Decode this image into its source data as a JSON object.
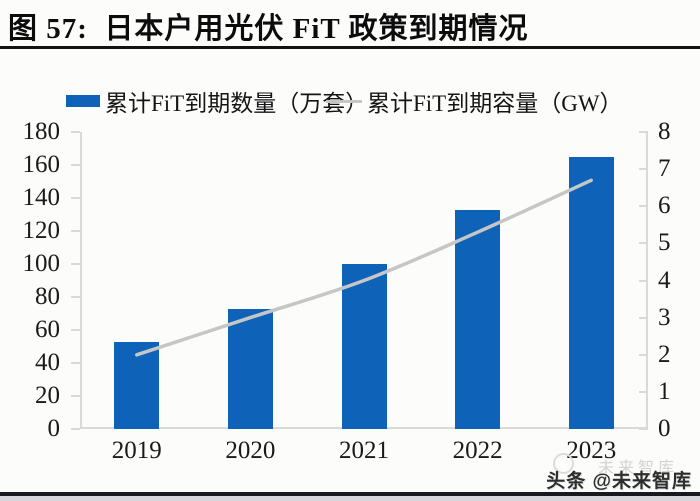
{
  "title": "图 57:  日本户用光伏 FiT 政策到期情况",
  "watermark": {
    "ghost": "未来智库",
    "credit": "头条 @未来智库"
  },
  "chart_data": {
    "type": "combo-bar-line",
    "categories": [
      "2019",
      "2020",
      "2021",
      "2022",
      "2023"
    ],
    "series": [
      {
        "name": "累计FiT到期数量（万套）",
        "type": "bar",
        "y_axis": "left",
        "color": "#0e63b8",
        "values": [
          53,
          73,
          100,
          133,
          165
        ]
      },
      {
        "name": "累计FiT到期容量（GW）",
        "type": "line",
        "y_axis": "right",
        "color": "#c6c6c6",
        "values": [
          2.0,
          3.0,
          4.0,
          5.3,
          6.7
        ]
      }
    ],
    "left_axis": {
      "min": 0,
      "max": 180,
      "step": 20
    },
    "right_axis": {
      "min": 0,
      "max": 8,
      "step": 1
    },
    "legend_position": "top",
    "grid": false,
    "axis_color": "#d9d9d9",
    "tick_label_color": "#1a1a1a"
  }
}
